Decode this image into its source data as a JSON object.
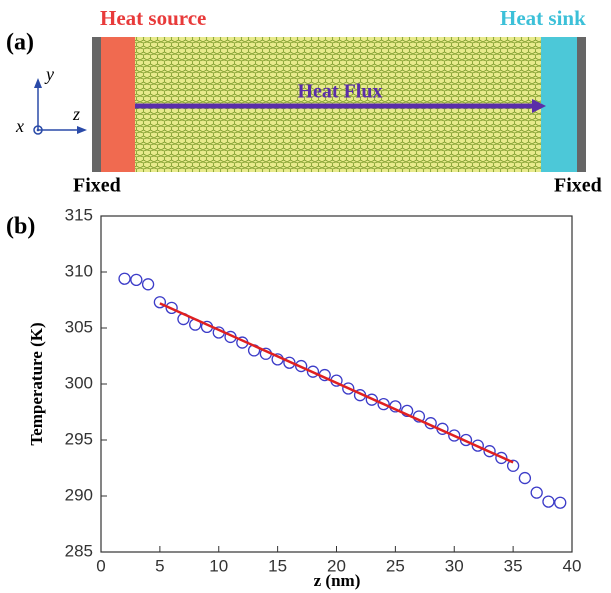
{
  "panel_a": {
    "label": "(a)",
    "heat_source": "Heat source",
    "heat_sink": "Heat sink",
    "flux": "Heat Flux",
    "fixed_left": "Fixed",
    "fixed_right": "Fixed",
    "axis_x": "x",
    "axis_y": "y",
    "axis_z": "z"
  },
  "chart_data": {
    "type": "scatter",
    "panel_label": "(b)",
    "x_label": "z (nm)",
    "y_label": "Temperature (K)",
    "xlim": [
      0,
      40
    ],
    "xticks": [
      0,
      5,
      10,
      15,
      20,
      25,
      30,
      35,
      40
    ],
    "ylim": [
      285,
      315
    ],
    "yticks": [
      285,
      290,
      295,
      300,
      305,
      310,
      315
    ],
    "series": [
      {
        "marker": "circle",
        "color": "#3c3cc8",
        "x": [
          2,
          3,
          4,
          5,
          6,
          7,
          8,
          9,
          10,
          11,
          12,
          13,
          14,
          15,
          16,
          17,
          18,
          19,
          20,
          21,
          22,
          23,
          24,
          25,
          26,
          27,
          28,
          29,
          30,
          31,
          32,
          33,
          34,
          35,
          36,
          37,
          38,
          39
        ],
        "values": [
          309.4,
          309.3,
          308.9,
          307.3,
          306.8,
          305.8,
          305.3,
          305.1,
          304.6,
          304.2,
          303.7,
          303.0,
          302.7,
          302.2,
          301.9,
          301.6,
          301.1,
          300.8,
          300.3,
          299.6,
          299.0,
          298.6,
          298.2,
          298.0,
          297.6,
          297.1,
          296.5,
          296.0,
          295.4,
          295.0,
          294.5,
          294.0,
          293.4,
          292.7,
          291.6,
          290.3,
          289.5,
          289.4
        ]
      },
      {
        "marker": "line",
        "color": "#e02020",
        "x": [
          5,
          35
        ],
        "values": [
          307.2,
          293.0
        ]
      }
    ]
  }
}
